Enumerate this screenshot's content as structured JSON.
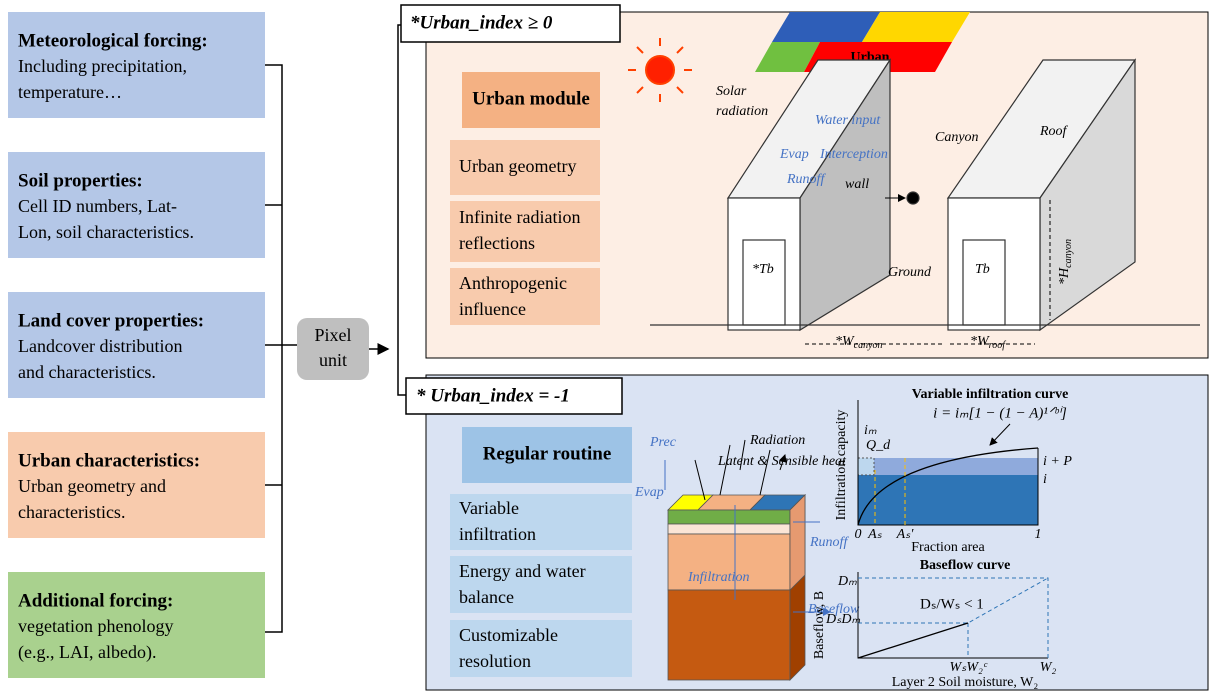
{
  "inputs": [
    {
      "title": "Meteorological forcing:",
      "lines": [
        "Including precipitation,",
        "temperature…"
      ]
    },
    {
      "title": "Soil properties:",
      "lines": [
        "Cell ID numbers, Lat-",
        "Lon, soil characteristics."
      ]
    },
    {
      "title": "Land cover properties:",
      "lines": [
        "Landcover distribution",
        "and characteristics."
      ]
    },
    {
      "title": "Urban characteristics:",
      "lines": [
        "Urban geometry and",
        "characteristics."
      ]
    },
    {
      "title": "Additional forcing:",
      "lines": [
        "vegetation phenology",
        "(e.g., LAI, albedo)."
      ]
    }
  ],
  "pixel_unit": [
    "Pixel",
    "unit"
  ],
  "urban": {
    "label": "*Urban_index ≥ 0",
    "module": "Urban module",
    "features": [
      [
        "Urban geometry"
      ],
      [
        "Infinite radiation",
        "reflections"
      ],
      [
        "Anthropogenic",
        "influence"
      ]
    ],
    "map_label": "Urban",
    "solar": [
      "Solar",
      "radiation"
    ],
    "water_input": "Water input",
    "evap": "Evap",
    "interception": "Interception",
    "runoff": "Runoff",
    "wall": "wall",
    "canyon": "Canyon",
    "roof": "Roof",
    "ground": "Ground",
    "tb1": "*Tb",
    "tb2": "Tb",
    "h_canyon": {
      "main": "*H",
      "sub": "canyon"
    },
    "w_canyon": {
      "main": "*W",
      "sub": "canyon"
    },
    "w_roof": {
      "main": "*W",
      "sub": "roof"
    }
  },
  "regular": {
    "label": "* Urban_index = -1",
    "module": "Regular routine",
    "features": [
      [
        "Variable",
        "infiltration"
      ],
      [
        "Energy and water",
        "balance"
      ],
      [
        "Customizable",
        "resolution"
      ]
    ],
    "radiation": "Radiation",
    "heat": "Latent & Sensible heat",
    "prec": "Prec",
    "evap": "Evap",
    "runoff": "Runoff",
    "infiltration": "Infiltration",
    "baseflow": "Baseflow",
    "infil_chart": {
      "title": "Variable infiltration curve",
      "equation": "i = iₘ[1 − (1 − A)¹ᐟᵇⁱ]",
      "ylabel": "Infiltration capacity",
      "xlabel": "Fraction area",
      "im": "iₘ",
      "qd": "Q_d",
      "zero": "0",
      "as": "Aₛ",
      "as2": "Aₛ′",
      "one": "1",
      "ip": "i + P",
      "i": "i"
    },
    "base_chart": {
      "title": "Baseflow curve",
      "ylabel": "Baseflow, B",
      "xlabel": "Layer 2 Soil moisture, W₂",
      "dm": "Dₘ",
      "dsdm": "DₛDₘ",
      "ratio": "Dₛ/Wₛ < 1",
      "wsw2c": "WₛW₂ᶜ",
      "w2": "W₂"
    }
  }
}
